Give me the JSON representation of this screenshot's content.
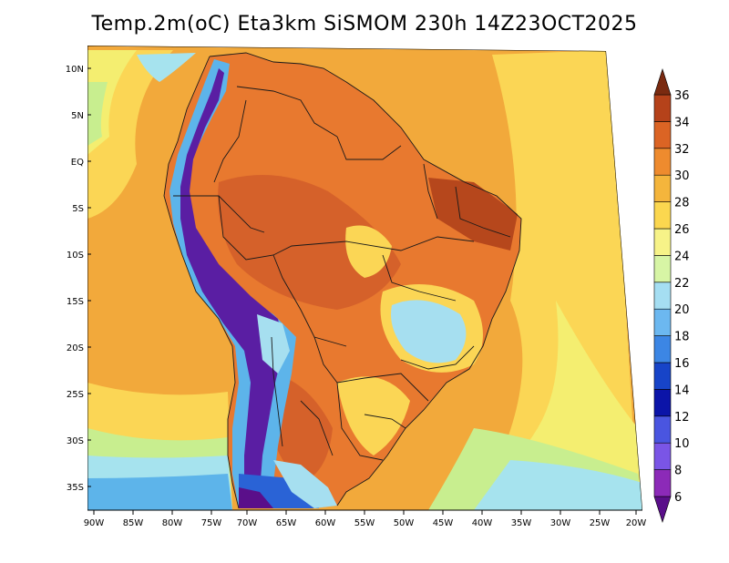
{
  "title": "Temp.2m(oC) Eta3km SiSMOM 230h 14Z23OCT2025",
  "colors": {
    "ocean_warm": "#f2a93b",
    "ocean_mid": "#fbd655",
    "ocean_cool": "#f4ee70",
    "ocean_green": "#c8ee8f",
    "ocean_cyan": "#a6e3ee",
    "ocean_blue": "#5db4ea",
    "land_hot": "#e8792f",
    "land_vhot": "#d5612a",
    "land_max": "#b6471c",
    "andes_dark": "#5a1ea3",
    "andes_blue": "#2a63d6",
    "highland_cyan": "#a6dff0",
    "border": "#1a1a1a"
  },
  "chart_data": {
    "type": "heatmap",
    "variable": "2 m temperature",
    "units": "oC",
    "lon_range": [
      -90,
      -20
    ],
    "lat_range": [
      -38,
      12
    ],
    "x_ticks": [
      "90W",
      "85W",
      "80W",
      "75W",
      "70W",
      "65W",
      "60W",
      "55W",
      "50W",
      "45W",
      "40W",
      "35W",
      "30W",
      "25W",
      "20W"
    ],
    "y_ticks": [
      "10N",
      "5N",
      "EQ",
      "5S",
      "10S",
      "15S",
      "20S",
      "25S",
      "30S",
      "35S"
    ],
    "colorbar": {
      "labels": [
        "6",
        "8",
        "10",
        "12",
        "14",
        "16",
        "18",
        "20",
        "22",
        "24",
        "26",
        "28",
        "30",
        "32",
        "34",
        "36"
      ],
      "colors": [
        "#5a0f8a",
        "#8c2ab8",
        "#7a55e6",
        "#4a55e0",
        "#0b14a8",
        "#1744c8",
        "#3c86e4",
        "#6cb8f0",
        "#a5def2",
        "#d7f5a5",
        "#f7f388",
        "#fbd74f",
        "#f4b53c",
        "#ee8b2e",
        "#db6424",
        "#b5421a",
        "#7a2a10"
      ],
      "extend": "both"
    }
  }
}
